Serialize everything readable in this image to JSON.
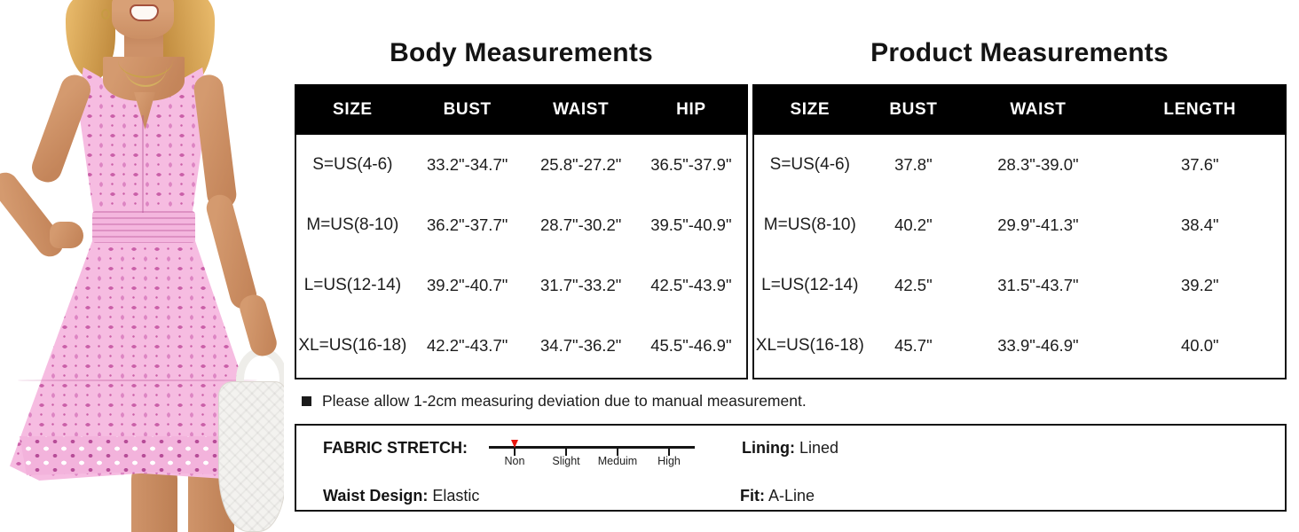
{
  "page": {
    "background": "#ffffff",
    "table_header_bg": "#000000",
    "border_color": "#141414",
    "accent_red": "#e8150d"
  },
  "photo": {
    "description": "Model wearing a pink sleeveless eyelet A-line mini dress with notched neckline, hand on hip, holding a white woven handbag",
    "dress_color": "#f6bce1",
    "eyelet_color": "#ca5fa8",
    "skin_color": "#cd9168",
    "hair_color": "#ddab5e",
    "bag_color": "#f3f2ef"
  },
  "body_table": {
    "title": "Body Measurements",
    "headers": [
      "SIZE",
      "BUST",
      "WAIST",
      "HIP"
    ],
    "rows": [
      [
        "S=US(4-6)",
        "33.2\"-34.7\"",
        "25.8\"-27.2\"",
        "36.5\"-37.9\""
      ],
      [
        "M=US(8-10)",
        "36.2\"-37.7\"",
        "28.7\"-30.2\"",
        "39.5\"-40.9\""
      ],
      [
        "L=US(12-14)",
        "39.2\"-40.7\"",
        "31.7\"-33.2\"",
        "42.5\"-43.9\""
      ],
      [
        "XL=US(16-18)",
        "42.2\"-43.7\"",
        "34.7\"-36.2\"",
        "45.5\"-46.9\""
      ]
    ]
  },
  "product_table": {
    "title": "Product Measurements",
    "headers": [
      "SIZE",
      "BUST",
      "WAIST",
      "LENGTH"
    ],
    "rows": [
      [
        "S=US(4-6)",
        "37.8\"",
        "28.3\"-39.0\"",
        "37.6\""
      ],
      [
        "M=US(8-10)",
        "40.2\"",
        "29.9\"-41.3\"",
        "38.4\""
      ],
      [
        "L=US(12-14)",
        "42.5\"",
        "31.5\"-43.7\"",
        "39.2\""
      ],
      [
        "XL=US(16-18)",
        "45.7\"",
        "33.9\"-46.9\"",
        "40.0\""
      ]
    ]
  },
  "note": {
    "text": "Please allow 1-2cm measuring deviation due to manual measurement."
  },
  "details": {
    "fabric_stretch_label": "FABRIC STRETCH:",
    "stretch_levels": [
      "Non",
      "Slight",
      "Meduim",
      "High"
    ],
    "stretch_selected": "Non",
    "lining_label": "Lining:",
    "lining_value": "Lined",
    "waist_design_label": "Waist Design:",
    "waist_design_value": "Elastic",
    "fit_label": "Fit:",
    "fit_value": "A-Line"
  }
}
